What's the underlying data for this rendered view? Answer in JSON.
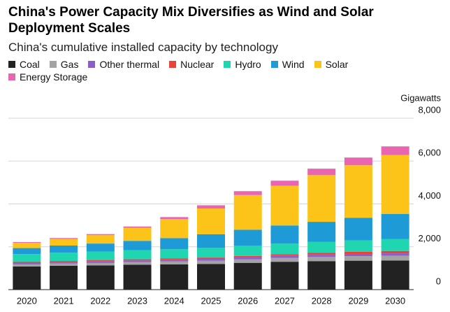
{
  "chart_data": {
    "type": "stacked_bar",
    "title": "China's Power Capacity Mix Diversifies as Wind and Solar Deployment Scales",
    "subtitle": "China's cumulative installed capacity by technology",
    "y_axis_label": "Gigawatts",
    "categories": [
      "2020",
      "2021",
      "2022",
      "2023",
      "2024",
      "2025",
      "2026",
      "2027",
      "2028",
      "2029",
      "2030"
    ],
    "series": [
      {
        "name": "Coal",
        "color": "#222222",
        "values": [
          1080,
          1110,
          1130,
          1160,
          1180,
          1200,
          1250,
          1300,
          1330,
          1350,
          1360
        ]
      },
      {
        "name": "Gas",
        "color": "#a3a3a3",
        "values": [
          100,
          110,
          115,
          125,
          135,
          150,
          165,
          180,
          195,
          210,
          225
        ]
      },
      {
        "name": "Other thermal",
        "color": "#8a5fc9",
        "values": [
          60,
          65,
          70,
          75,
          80,
          85,
          90,
          95,
          100,
          105,
          110
        ]
      },
      {
        "name": "Nuclear",
        "color": "#e8443a",
        "values": [
          50,
          53,
          56,
          57,
          60,
          62,
          70,
          80,
          90,
          100,
          110
        ]
      },
      {
        "name": "Hydro",
        "color": "#1fd6b0",
        "values": [
          370,
          390,
          410,
          420,
          430,
          450,
          470,
          490,
          510,
          530,
          550
        ]
      },
      {
        "name": "Wind",
        "color": "#1e9ad6",
        "values": [
          280,
          330,
          370,
          440,
          520,
          640,
          750,
          850,
          940,
          1060,
          1180
        ]
      },
      {
        "name": "Solar",
        "color": "#fcc419",
        "values": [
          250,
          310,
          390,
          610,
          890,
          1200,
          1620,
          1850,
          2180,
          2450,
          2750
        ]
      },
      {
        "name": "Energy Storage",
        "color": "#e866b0",
        "values": [
          30,
          40,
          50,
          60,
          90,
          150,
          180,
          240,
          300,
          360,
          400
        ]
      }
    ],
    "ylim": [
      0,
      8000
    ],
    "yticks": [
      0,
      {
        "value": 2000,
        "label": "2,000"
      },
      {
        "value": 4000,
        "label": "4,000"
      },
      {
        "value": 6000,
        "label": "6,000"
      },
      {
        "value": 8000,
        "label": "8,000"
      }
    ],
    "grid": true
  }
}
